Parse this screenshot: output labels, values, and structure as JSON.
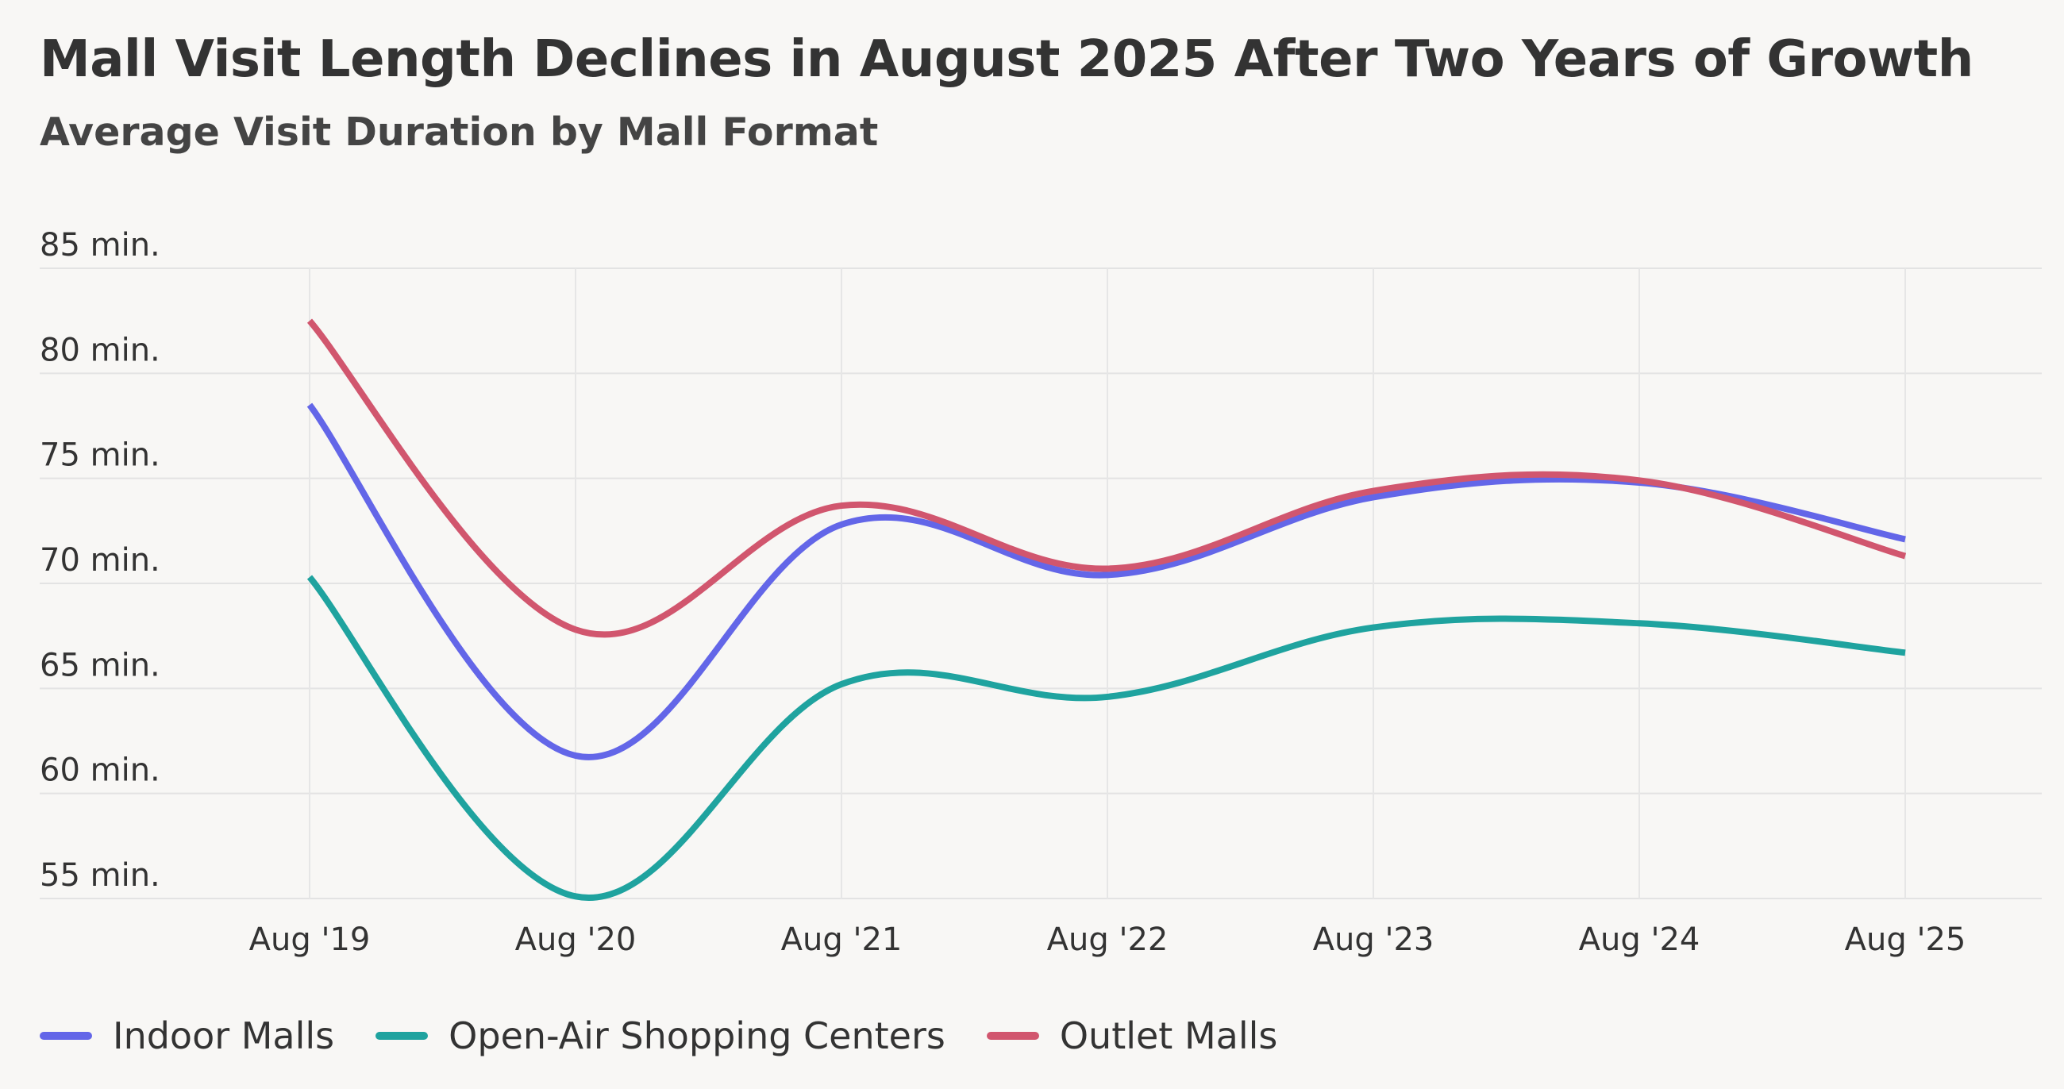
{
  "header": {
    "title": "Mall Visit Length Declines in August 2025 After Two Years of Growth",
    "subtitle": "Average Visit Duration by Mall Format"
  },
  "chart_data": {
    "type": "line",
    "title": "Mall Visit Length Declines in August 2025 After Two Years of Growth",
    "subtitle": "Average Visit Duration by Mall Format",
    "xlabel": "",
    "ylabel": "",
    "x": [
      "Aug '19",
      "Aug '20",
      "Aug '21",
      "Aug '22",
      "Aug '23",
      "Aug '24",
      "Aug '25"
    ],
    "y_ticks": [
      55,
      60,
      65,
      70,
      75,
      80,
      85
    ],
    "y_tick_labels": [
      "55 min.",
      "60 min.",
      "65 min.",
      "70 min.",
      "75 min.",
      "80 min.",
      "85 min."
    ],
    "ylim": [
      55,
      85
    ],
    "grid": true,
    "legend_position": "bottom-left",
    "series": [
      {
        "name": "Indoor Malls",
        "color": "#6366e8",
        "values": [
          78.5,
          61.8,
          72.8,
          70.4,
          74.1,
          74.8,
          72.1
        ]
      },
      {
        "name": "Open-Air Shopping Centers",
        "color": "#1fa39f",
        "values": [
          70.3,
          55.1,
          65.2,
          64.6,
          67.9,
          68.1,
          66.7
        ]
      },
      {
        "name": "Outlet Malls",
        "color": "#d1566e",
        "values": [
          82.5,
          67.8,
          73.7,
          70.7,
          74.4,
          74.9,
          71.3
        ]
      }
    ]
  }
}
